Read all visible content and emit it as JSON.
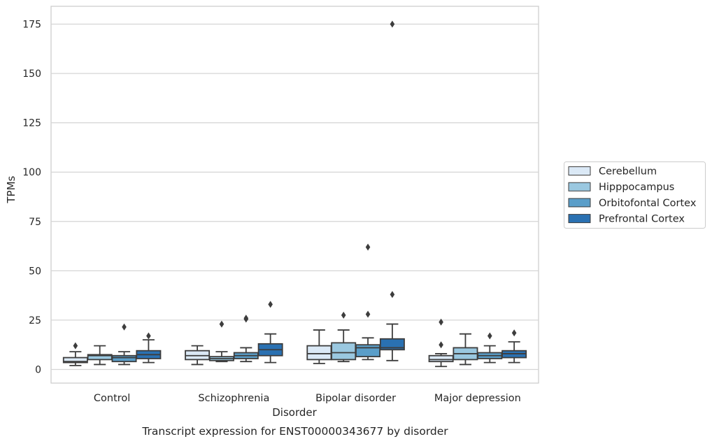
{
  "chart_data": {
    "type": "boxplot",
    "title": "Transcript expression for ENST00000343677 by disorder",
    "xlabel": "Disorder",
    "ylabel": "TPMs",
    "ylim": [
      -7,
      184
    ],
    "yticks": [
      0,
      25,
      50,
      75,
      100,
      125,
      150,
      175
    ],
    "ytick_labels": [
      "0",
      "25",
      "50",
      "75",
      "100",
      "125",
      "150",
      "175"
    ],
    "grid": "horizontal",
    "legend_position": "right",
    "categories": [
      "Control",
      "Schizophrenia",
      "Bipolar disorder",
      "Major depression"
    ],
    "series": [
      {
        "name": "Cerebellum",
        "color": "#dbe9f6",
        "boxes": [
          {
            "whislo": 2,
            "q1": 3.5,
            "med": 4,
            "q3": 6,
            "whishi": 9,
            "fliers": [
              12
            ]
          },
          {
            "whislo": 2.5,
            "q1": 5,
            "med": 7,
            "q3": 9.5,
            "whishi": 12,
            "fliers": []
          },
          {
            "whislo": 3,
            "q1": 5,
            "med": 8,
            "q3": 12,
            "whishi": 20,
            "fliers": []
          },
          {
            "whislo": 1.5,
            "q1": 4,
            "med": 5,
            "q3": 7,
            "whishi": 8,
            "fliers": [
              12.5,
              24
            ]
          }
        ]
      },
      {
        "name": "Hipppocampus",
        "color": "#9ac8e0",
        "boxes": [
          {
            "whislo": 2.5,
            "q1": 5,
            "med": 7,
            "q3": 7.5,
            "whishi": 12,
            "fliers": []
          },
          {
            "whislo": 4,
            "q1": 4.5,
            "med": 5.5,
            "q3": 6.5,
            "whishi": 9,
            "fliers": [
              23
            ]
          },
          {
            "whislo": 4,
            "q1": 5,
            "med": 8.5,
            "q3": 13.5,
            "whishi": 20,
            "fliers": [
              27.5
            ]
          },
          {
            "whislo": 2.5,
            "q1": 5,
            "med": 8,
            "q3": 11,
            "whishi": 18,
            "fliers": []
          }
        ]
      },
      {
        "name": "Orbitofontal Cortex",
        "color": "#5a9ec9",
        "boxes": [
          {
            "whislo": 2.5,
            "q1": 4,
            "med": 6,
            "q3": 7,
            "whishi": 9,
            "fliers": [
              21.5
            ]
          },
          {
            "whislo": 4,
            "q1": 5.5,
            "med": 7,
            "q3": 8.5,
            "whishi": 11,
            "fliers": [
              25.5,
              26
            ]
          },
          {
            "whislo": 5,
            "q1": 6.5,
            "med": 11,
            "q3": 12.5,
            "whishi": 16,
            "fliers": [
              28,
              62
            ]
          },
          {
            "whislo": 3.5,
            "q1": 5.5,
            "med": 7,
            "q3": 8.5,
            "whishi": 12,
            "fliers": [
              17
            ]
          }
        ]
      },
      {
        "name": "Prefrontal Cortex",
        "color": "#2a71b2",
        "boxes": [
          {
            "whislo": 3.5,
            "q1": 5.5,
            "med": 7.5,
            "q3": 9.5,
            "whishi": 15,
            "fliers": [
              17
            ]
          },
          {
            "whislo": 3.5,
            "q1": 7,
            "med": 10,
            "q3": 13,
            "whishi": 18,
            "fliers": [
              33
            ]
          },
          {
            "whislo": 4.5,
            "q1": 10,
            "med": 11,
            "q3": 15.5,
            "whishi": 23,
            "fliers": [
              38,
              175
            ]
          },
          {
            "whislo": 3.5,
            "q1": 6,
            "med": 8,
            "q3": 9.5,
            "whishi": 14,
            "fliers": [
              18.5
            ]
          }
        ]
      }
    ]
  }
}
